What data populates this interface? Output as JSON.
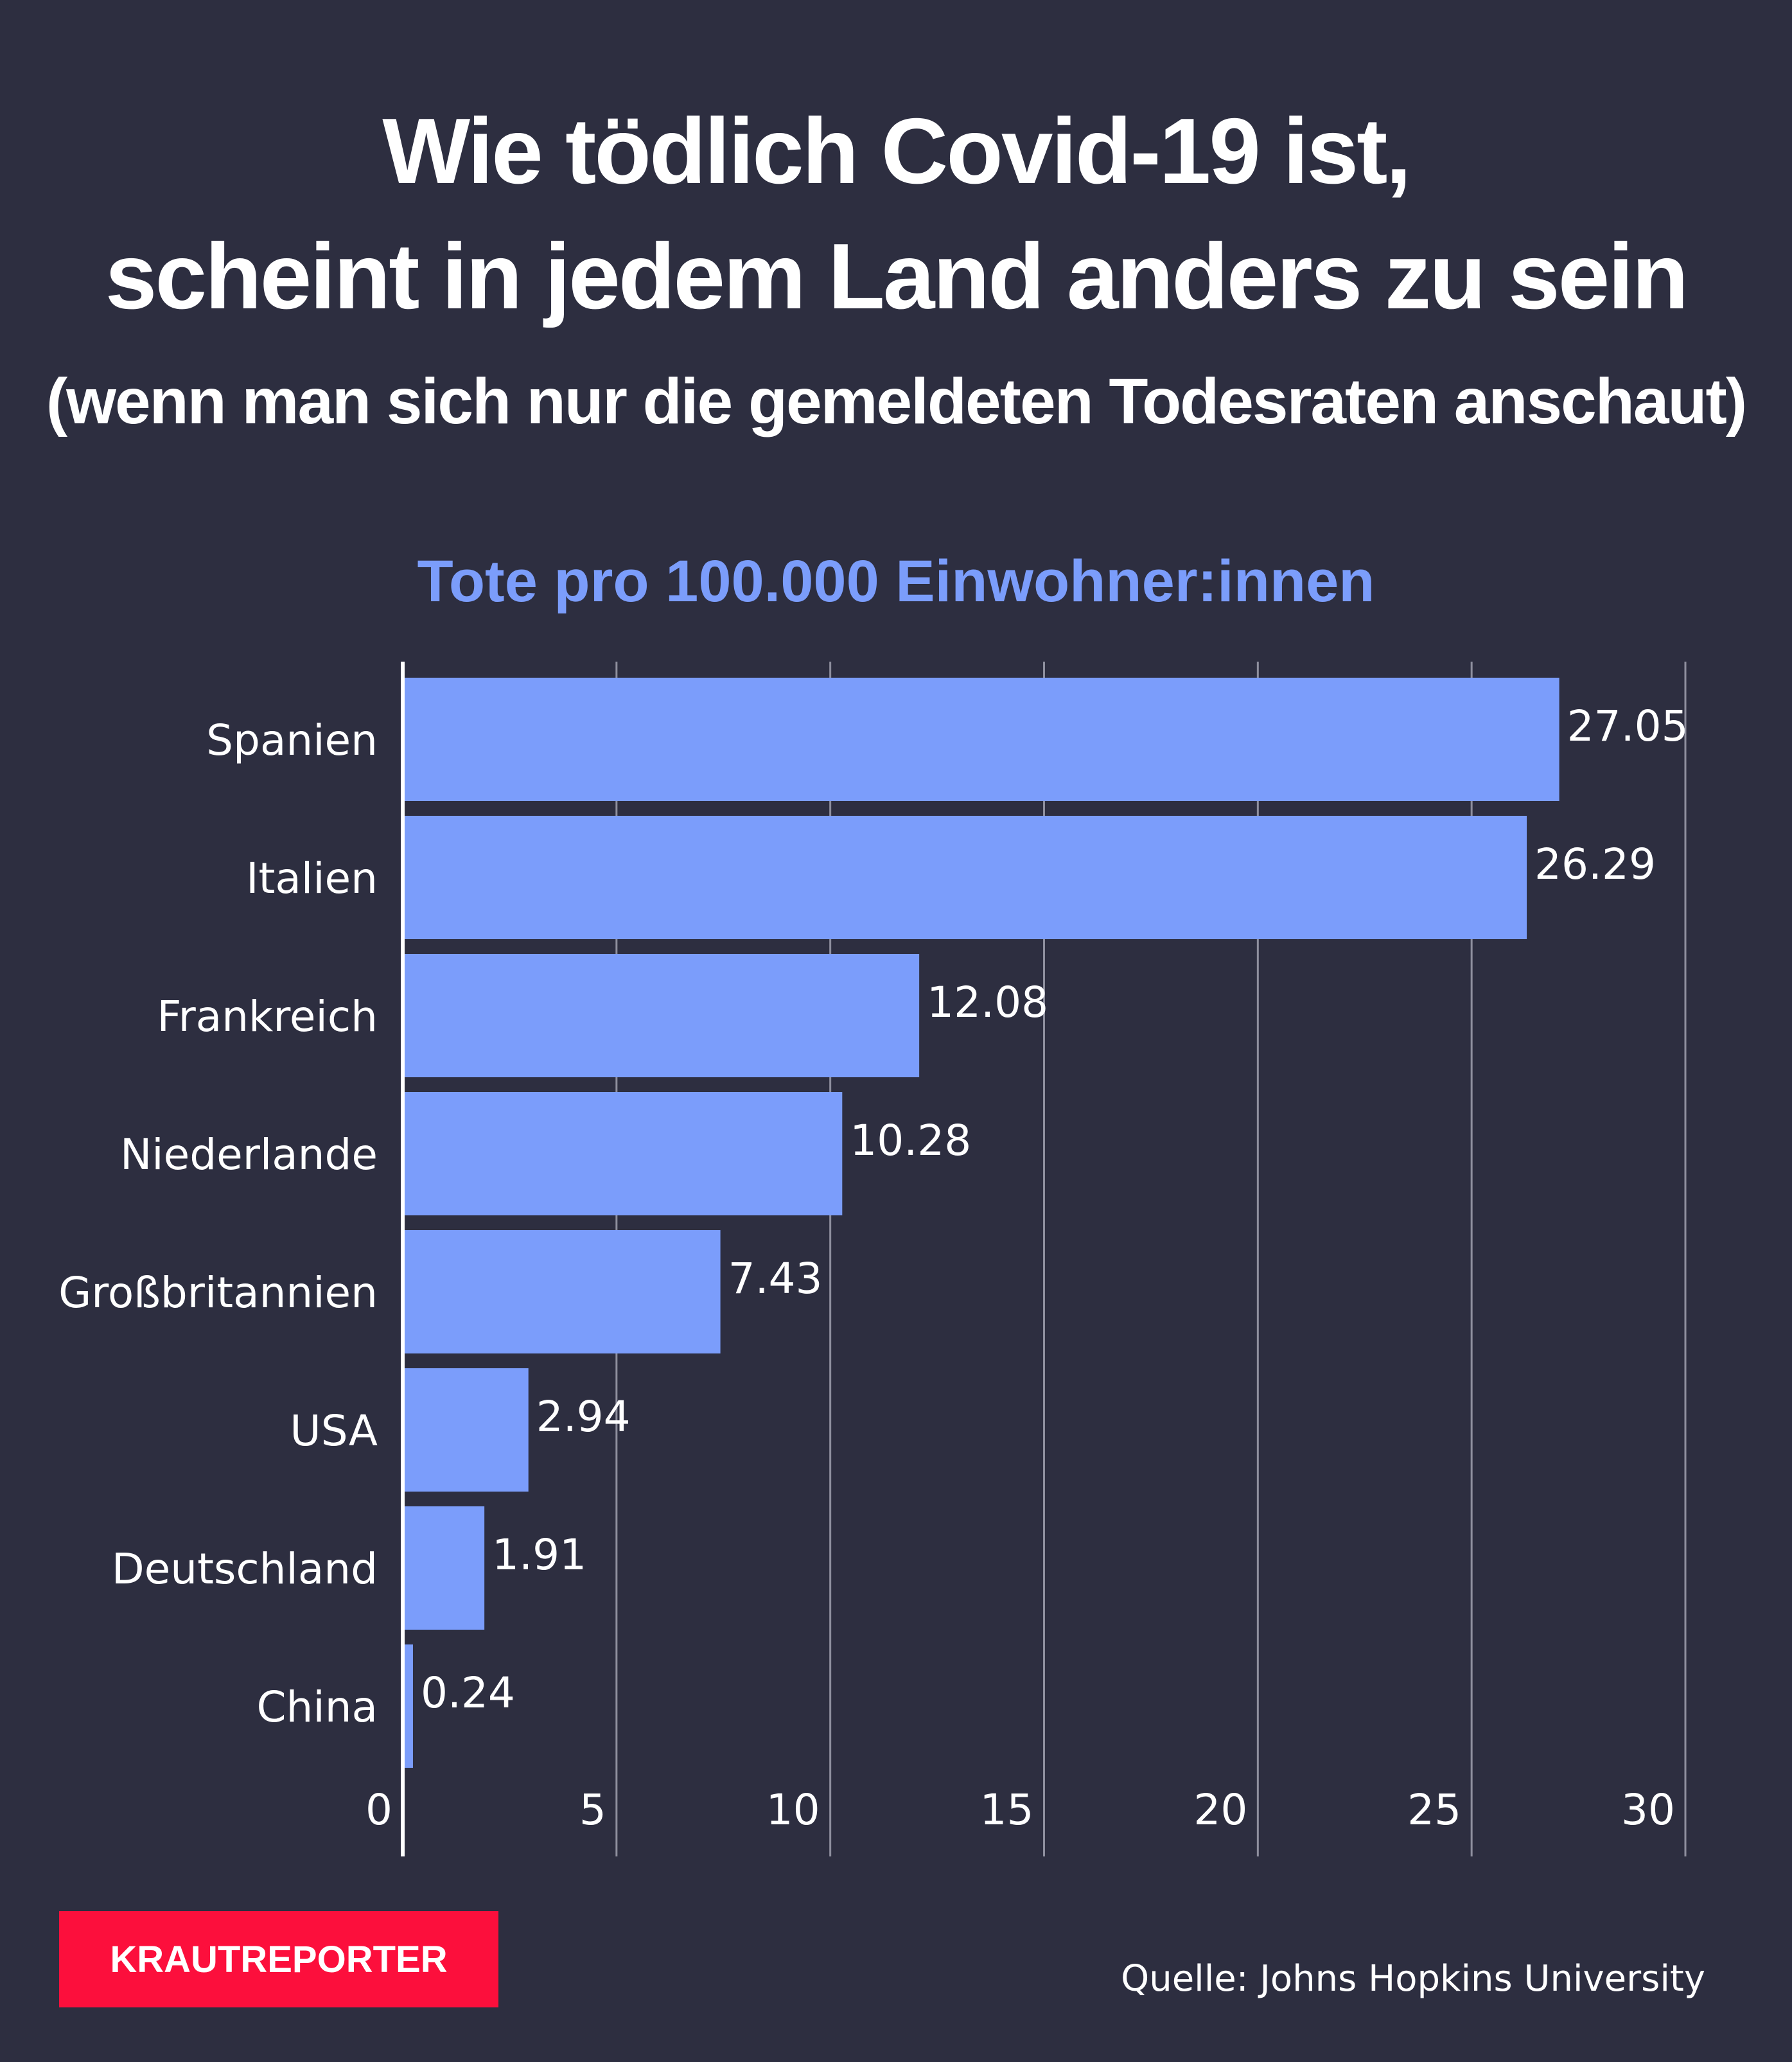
{
  "header": {
    "title_line_1": "Wie tödlich Covid-19 ist,",
    "title_line_2": "scheint in jedem Land anders zu sein",
    "subtitle": "(wenn man sich nur die gemeldeten Todesraten anschaut)"
  },
  "chart_data": {
    "type": "bar",
    "orientation": "horizontal",
    "title": "Tote pro 100.000 Einwohner:innen",
    "categories": [
      "Spanien",
      "Italien",
      "Frankreich",
      "Niederlande",
      "Großbritannien",
      "USA",
      "Deutschland",
      "China"
    ],
    "values": [
      27.05,
      26.29,
      12.08,
      10.28,
      7.43,
      2.94,
      1.91,
      0.24
    ],
    "value_labels": [
      "27.05",
      "26.29",
      "12.08",
      "10.28",
      "7.43",
      "2.94",
      "1.91",
      "0.24"
    ],
    "xlim": [
      0,
      30
    ],
    "x_ticks": [
      0,
      5,
      10,
      15,
      20,
      25,
      30
    ],
    "x_tick_labels": [
      "0",
      "5",
      "10",
      "15",
      "20",
      "25",
      "30"
    ],
    "xlabel": "",
    "ylabel": "",
    "grid": true,
    "legend": "none",
    "colors": {
      "bar": "#7b9dfb",
      "gridline": "#8e8f9e",
      "axis": "#ffffff",
      "title": "#7b9dfb"
    }
  },
  "footer": {
    "brand": "KRAUTREPORTER",
    "brand_color": "#fc0f3c",
    "source": "Quelle:  Johns Hopkins University"
  },
  "colors": {
    "background": "#2d2e40",
    "text": "#ffffff"
  }
}
